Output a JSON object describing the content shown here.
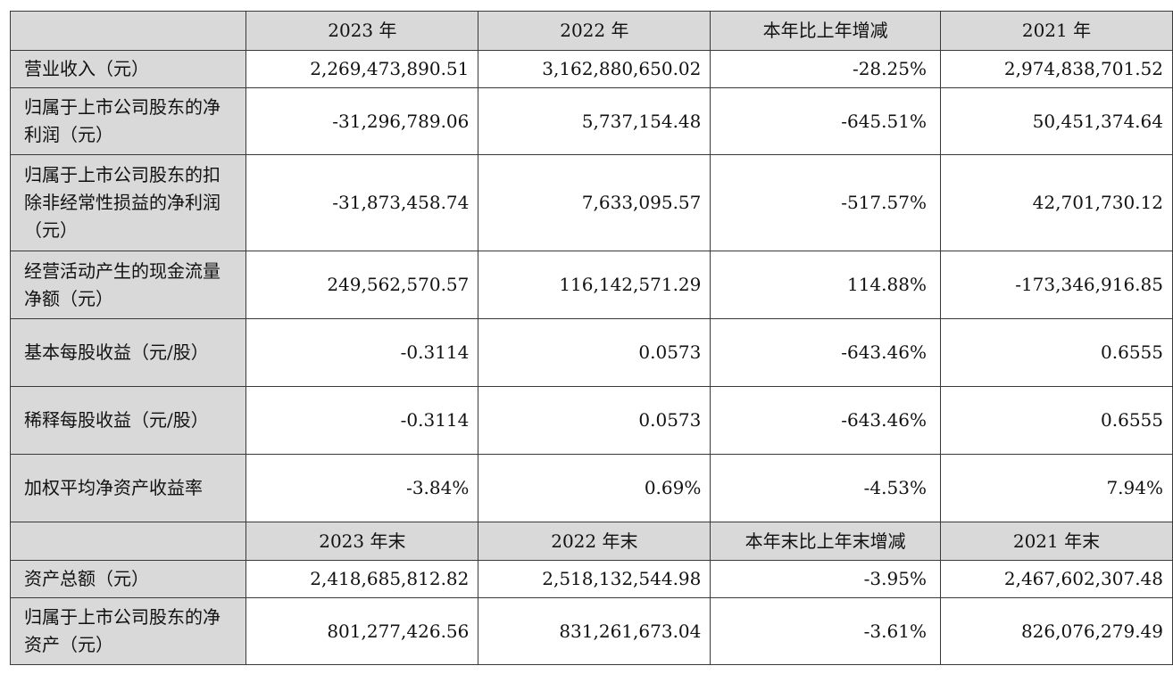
{
  "header1": {
    "c1": "2023 年",
    "c2": "2022 年",
    "c3": "本年比上年增减",
    "c4": "2021 年"
  },
  "header2": {
    "c1": "2023 年末",
    "c2": "2022 年末",
    "c3": "本年末比上年末增减",
    "c4": "2021 年末"
  },
  "rows": [
    {
      "label": "营业收入（元）",
      "v2023": "2,269,473,890.51",
      "v2022": "3,162,880,650.02",
      "change": "-28.25%",
      "v2021": "2,974,838,701.52"
    },
    {
      "label": "归属于上市公司股东的净利润（元）",
      "v2023": "-31,296,789.06",
      "v2022": "5,737,154.48",
      "change": "-645.51%",
      "v2021": "50,451,374.64"
    },
    {
      "label": "归属于上市公司股东的扣除非经常性损益的净利润（元）",
      "v2023": "-31,873,458.74",
      "v2022": "7,633,095.57",
      "change": "-517.57%",
      "v2021": "42,701,730.12"
    },
    {
      "label": "经营活动产生的现金流量净额（元）",
      "v2023": "249,562,570.57",
      "v2022": "116,142,571.29",
      "change": "114.88%",
      "v2021": "-173,346,916.85"
    },
    {
      "label": "基本每股收益（元/股）",
      "v2023": "-0.3114",
      "v2022": "0.0573",
      "change": "-643.46%",
      "v2021": "0.6555"
    },
    {
      "label": "稀释每股收益（元/股）",
      "v2023": "-0.3114",
      "v2022": "0.0573",
      "change": "-643.46%",
      "v2021": "0.6555"
    },
    {
      "label": "加权平均净资产收益率",
      "v2023": "-3.84%",
      "v2022": "0.69%",
      "change": "-4.53%",
      "v2021": "7.94%"
    }
  ],
  "rows2": [
    {
      "label": "资产总额（元）",
      "v2023": "2,418,685,812.82",
      "v2022": "2,518,132,544.98",
      "change": "-3.95%",
      "v2021": "2,467,602,307.48"
    },
    {
      "label": "归属于上市公司股东的净资产（元）",
      "v2023": "801,277,426.56",
      "v2022": "831,261,673.04",
      "change": "-3.61%",
      "v2021": "826,076,279.49"
    }
  ]
}
